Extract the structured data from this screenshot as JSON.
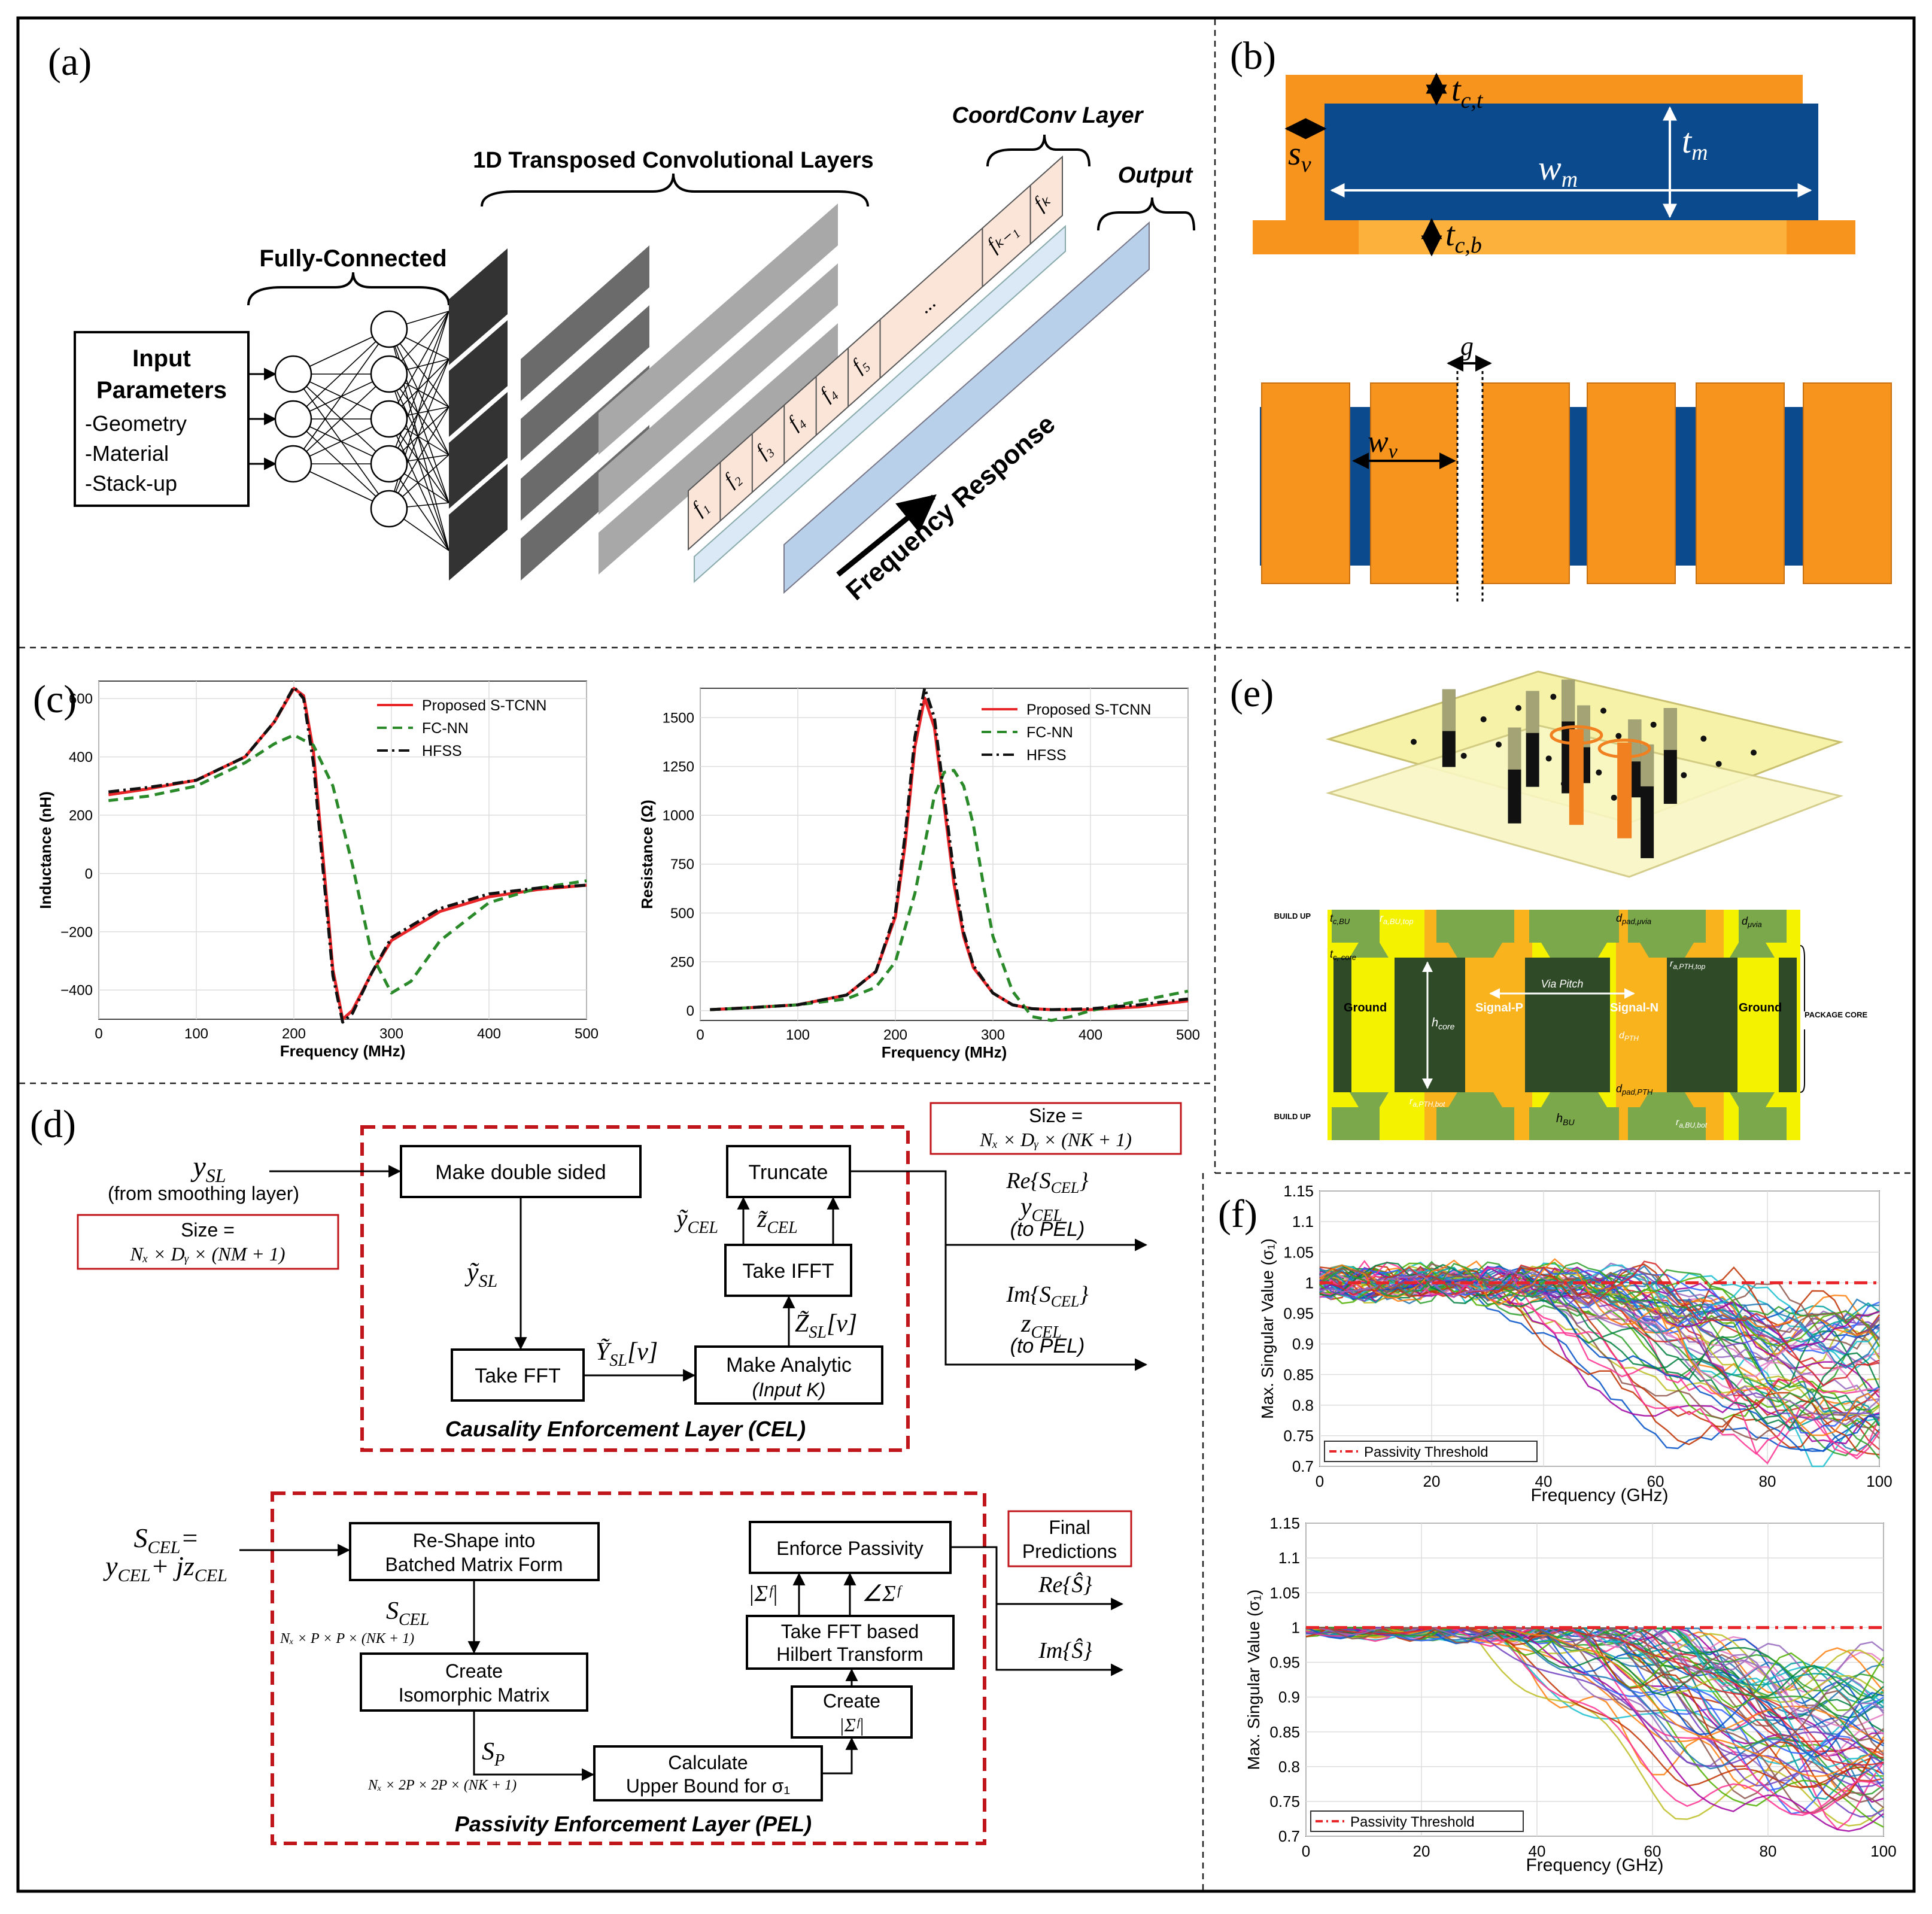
{
  "panels": {
    "a": {
      "label": "(a)",
      "fully_connected": "Fully-Connected",
      "transposed": "1D Transposed Convolutional Layers",
      "coordconv": "CoordConv Layer",
      "output": "Output",
      "input_title_1": "Input",
      "input_title_2": "Parameters",
      "input_items": [
        "-Geometry",
        "-Material",
        "-Stack-up"
      ],
      "freq_response": "Frequency Response",
      "coord_cells": [
        "f₁",
        "f₂",
        "f₃",
        "f₄",
        "f₄",
        "f₅",
        "...",
        "fₖ₋₁",
        "fₖ"
      ]
    },
    "b": {
      "label": "(b)",
      "tct": "t",
      "tct_sub": "c,t",
      "sv": "s",
      "sv_sub": "v",
      "tm": "t",
      "tm_sub": "m",
      "wm": "w",
      "wm_sub": "m",
      "tcb": "t",
      "tcb_sub": "c,b",
      "g": "g",
      "wv": "w",
      "wv_sub": "v"
    },
    "c": {
      "label": "(c)",
      "left": {
        "ylabel": "Inductance (nH)",
        "xlabel": "Frequency (MHz)",
        "xticks": [
          "0",
          "100",
          "200",
          "300",
          "400",
          "500"
        ],
        "yticks": [
          "600",
          "400",
          "200",
          "0",
          "−200",
          "−400"
        ],
        "legend": [
          "Proposed S-TCNN",
          "FC-NN",
          "HFSS"
        ]
      },
      "right": {
        "ylabel": "Resistance (Ω)",
        "xlabel": "Frequency (MHz)",
        "xticks": [
          "0",
          "100",
          "200",
          "300",
          "400",
          "500"
        ],
        "yticks": [
          "1500",
          "1250",
          "1000",
          "750",
          "500",
          "250",
          "0"
        ],
        "legend": [
          "Proposed S-TCNN",
          "FC-NN",
          "HFSS"
        ]
      }
    },
    "d": {
      "label": "(d)",
      "ysl_in": "y",
      "ysl_in_sub": "SL",
      "from_smoothing": "(from smoothing layer)",
      "size1_line1": "Size =",
      "size1_line2": "Nₓ × Dᵧ × (NM + 1)",
      "make_double": "Make double sided",
      "truncate": "Truncate",
      "take_ifft": "Take IFFT",
      "take_fft": "Take FFT",
      "make_analytic_1": "Make Analytic",
      "make_analytic_2": "(Input K)",
      "ysl_tilde": "ỹ",
      "ysl_tilde_sub": "SL",
      "ysl_nu": "Ỹ",
      "ysl_nu_sub": "SL",
      "ysl_nu_br": "[ν]",
      "zsl_nu": "Z̃",
      "zsl_nu_sub": "SL",
      "zsl_nu_br": "[ν]",
      "ycel_tilde": "ỹ",
      "ycel_tilde_sub": "CEL",
      "zcel_tilde": "z̃",
      "zcel_tilde_sub": "CEL",
      "cel_title": "Causality Enforcement Layer (CEL)",
      "size2_line1": "Size =",
      "size2_line2": "Nₓ × Dᵧ × (NK + 1)",
      "re_scel": "Re{S",
      "re_scel_sub": "CEL",
      "ycel": "y",
      "ycel_sub": "CEL",
      "to_pel": "(to PEL)",
      "im_scel": "Im{S",
      "zcel": "z",
      "zcel_sub": "CEL",
      "scel_eq_1": "S",
      "scel_eq_sub": "CEL",
      "scel_eq_2": "y",
      "scel_eq_3": "+ jz",
      "reshape_1": "Re-Shape into",
      "reshape_2": "Batched Matrix Form",
      "scel_dim": "Nₓ × P × P × (NK + 1)",
      "create_iso_1": "Create",
      "create_iso_2": "Isomorphic Matrix",
      "sp": "S",
      "sp_sub": "P",
      "sp_dim": "Nₓ × 2P × 2P × (NK + 1)",
      "calc_1": "Calculate",
      "calc_2": "Upper Bound for σ₁",
      "create_sigma_1": "Create",
      "create_sigma_2": "|Σᶠ|",
      "hilbert_1": "Take FFT based",
      "hilbert_2": "Hilbert Transform",
      "abs_sigma": "|Σᶠ|",
      "ang_sigma": "∠Σᶠ",
      "enforce": "Enforce Passivity",
      "final_1": "Final",
      "final_2": "Predictions",
      "re_s": "Re{Ŝ}",
      "im_s": "Im{Ŝ}",
      "pel_title": "Passivity Enforcement Layer (PEL)"
    },
    "e": {
      "label": "(e)",
      "build_up": "BUILD UP",
      "package_core": "PACKAGE CORE",
      "ground": "Ground",
      "signal_p": "Signal-P",
      "signal_n": "Signal-N",
      "via_pitch": "Via Pitch",
      "h_core": "h",
      "h_core_sub": "core",
      "h_bu": "h",
      "h_bu_sub": "BU",
      "tc_bu": "t",
      "tc_bu_sub": "c,BU",
      "tc_core": "t",
      "tc_core_sub": "c, core",
      "ra_bu_top": "r",
      "ra_bu_top_sub": "a,BU,top",
      "d_pad_uvia": "d",
      "d_pad_uvia_sub": "pad,μvia",
      "d_uvia": "d",
      "d_uvia_sub": "μvia",
      "ra_pth_top": "r",
      "ra_pth_top_sub": "a,PTH,top",
      "d_pth": "d",
      "d_pth_sub": "PTH",
      "d_pad_pth": "d",
      "d_pad_pth_sub": "pad,PTH",
      "ra_pth_bot": "r",
      "ra_pth_bot_sub": "a,PTH,bot",
      "ra_bu_bot": "r",
      "ra_bu_bot_sub": "a,BU,bot"
    },
    "f": {
      "label": "(f)",
      "top": {
        "ylabel": "Max. Singular Value (σ₁)",
        "xlabel": "Frequency (GHz)",
        "legend": "Passivity Threshold",
        "xticks": [
          "0",
          "20",
          "40",
          "60",
          "80",
          "100"
        ],
        "yticks": [
          "1.15",
          "1.1",
          "1.05",
          "1",
          "0.95",
          "0.9",
          "0.85",
          "0.8",
          "0.75",
          "0.7"
        ]
      },
      "bottom": {
        "ylabel": "Max. Singular Value (σ₁)",
        "xlabel": "Frequency (GHz)",
        "legend": "Passivity Threshold",
        "xticks": [
          "0",
          "20",
          "40",
          "60",
          "80",
          "100"
        ],
        "yticks": [
          "1.15",
          "1.1",
          "1.05",
          "1",
          "0.95",
          "0.9",
          "0.85",
          "0.8",
          "0.75",
          "0.7"
        ]
      }
    }
  },
  "chart_data": [
    {
      "type": "line",
      "xlabel": "Frequency (MHz)",
      "ylabel": "Inductance (nH)",
      "xlim": [
        0,
        500
      ],
      "ylim": [
        -500,
        660
      ],
      "grid": true,
      "legend": "top-right",
      "series": [
        {
          "name": "Proposed S-TCNN",
          "color": "#e8262a",
          "x": [
            10,
            50,
            100,
            150,
            180,
            200,
            210,
            220,
            230,
            240,
            250,
            260,
            280,
            300,
            350,
            400,
            450,
            500
          ],
          "y": [
            270,
            290,
            320,
            400,
            520,
            635,
            610,
            420,
            50,
            -330,
            -500,
            -470,
            -340,
            -230,
            -130,
            -80,
            -55,
            -40
          ]
        },
        {
          "name": "FC-NN",
          "color": "#2a8a2a",
          "x": [
            10,
            50,
            100,
            150,
            180,
            200,
            220,
            240,
            260,
            280,
            300,
            320,
            350,
            400,
            450,
            500
          ],
          "y": [
            250,
            265,
            300,
            380,
            445,
            475,
            440,
            300,
            30,
            -280,
            -410,
            -370,
            -230,
            -100,
            -50,
            -25
          ]
        },
        {
          "name": "HFSS",
          "color": "#111111",
          "x": [
            10,
            50,
            100,
            150,
            180,
            200,
            210,
            220,
            230,
            240,
            250,
            260,
            280,
            300,
            350,
            400,
            450,
            500
          ],
          "y": [
            280,
            295,
            320,
            400,
            520,
            640,
            600,
            380,
            10,
            -350,
            -510,
            -480,
            -340,
            -220,
            -120,
            -70,
            -50,
            -40
          ]
        }
      ]
    },
    {
      "type": "line",
      "xlabel": "Frequency (MHz)",
      "ylabel": "Resistance (Ω)",
      "xlim": [
        0,
        500
      ],
      "ylim": [
        -50,
        1650
      ],
      "grid": true,
      "legend": "top-right",
      "series": [
        {
          "name": "Proposed S-TCNN",
          "color": "#e8262a",
          "x": [
            10,
            50,
            100,
            150,
            180,
            200,
            210,
            220,
            230,
            240,
            250,
            260,
            270,
            280,
            300,
            320,
            340,
            360,
            400,
            450,
            500
          ],
          "y": [
            5,
            15,
            30,
            80,
            200,
            480,
            850,
            1350,
            1600,
            1450,
            1050,
            650,
            380,
            220,
            90,
            30,
            10,
            5,
            5,
            20,
            50
          ]
        },
        {
          "name": "FC-NN",
          "color": "#2a8a2a",
          "x": [
            10,
            50,
            100,
            150,
            180,
            200,
            220,
            240,
            250,
            260,
            270,
            280,
            290,
            300,
            320,
            340,
            360,
            380,
            400,
            450,
            500
          ],
          "y": [
            5,
            15,
            30,
            60,
            120,
            250,
            600,
            1100,
            1220,
            1230,
            1150,
            950,
            650,
            380,
            100,
            -30,
            -50,
            -30,
            0,
            50,
            100
          ]
        },
        {
          "name": "HFSS",
          "color": "#111111",
          "x": [
            10,
            50,
            100,
            150,
            180,
            200,
            210,
            220,
            230,
            240,
            250,
            260,
            270,
            280,
            300,
            320,
            340,
            360,
            400,
            450,
            500
          ],
          "y": [
            5,
            15,
            30,
            80,
            200,
            500,
            900,
            1400,
            1650,
            1500,
            1100,
            700,
            400,
            230,
            90,
            30,
            10,
            5,
            10,
            30,
            60
          ]
        }
      ]
    },
    {
      "type": "line",
      "xlabel": "Frequency (GHz)",
      "ylabel": "Max. Singular Value (σ₁)",
      "xlim": [
        0,
        100
      ],
      "ylim": [
        0.7,
        1.15
      ],
      "grid": true,
      "legend": "bottom-left",
      "threshold": 1.0,
      "series": [
        {
          "name": "Passivity Threshold",
          "color": "#e8262a",
          "x": [
            0,
            100
          ],
          "y": [
            1,
            1
          ]
        }
      ]
    },
    {
      "type": "line",
      "xlabel": "Frequency (GHz)",
      "ylabel": "Max. Singular Value (σ₁)",
      "xlim": [
        0,
        100
      ],
      "ylim": [
        0.7,
        1.15
      ],
      "grid": true,
      "legend": "bottom-left",
      "threshold": 1.0,
      "series": [
        {
          "name": "Passivity Threshold",
          "color": "#e8262a",
          "x": [
            0,
            100
          ],
          "y": [
            1,
            1
          ]
        }
      ]
    }
  ],
  "colors": {
    "orange": "#f7941d",
    "light_orange": "#fbb13c",
    "navy": "#0b4a8c",
    "dark_green": "#2f4a26",
    "light_green": "#7aa84a",
    "yellow": "#f5f200",
    "dashed_red": "#c0151b"
  }
}
